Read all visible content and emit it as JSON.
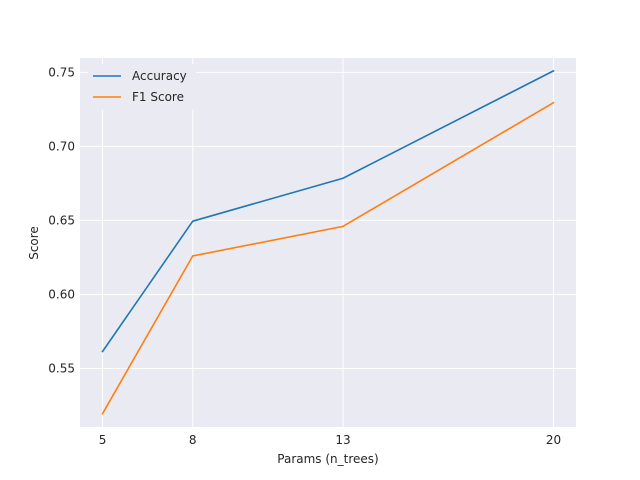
{
  "chart_data": {
    "type": "line",
    "title": "",
    "xlabel": "Params (n_trees)",
    "ylabel": "Score",
    "x": [
      5,
      8,
      13,
      20
    ],
    "x_tick_labels": [
      "5",
      "8",
      "13",
      "20"
    ],
    "y_ticks": [
      0.55,
      0.6,
      0.65,
      0.7,
      0.75
    ],
    "y_tick_labels": [
      "0.55",
      "0.60",
      "0.65",
      "0.70",
      "0.75"
    ],
    "xlim": [
      4.25,
      20.75
    ],
    "ylim": [
      0.5105,
      0.7597
    ],
    "grid": true,
    "legend_position": "upper-left",
    "background_color": "#eaeaf2",
    "grid_color": "#ffffff",
    "series": [
      {
        "name": "Accuracy",
        "color": "#1f77b4",
        "values": [
          0.5615,
          0.6495,
          0.6785,
          0.751
        ]
      },
      {
        "name": "F1 Score",
        "color": "#ff7f0e",
        "values": [
          0.5195,
          0.626,
          0.646,
          0.7295
        ]
      }
    ]
  }
}
